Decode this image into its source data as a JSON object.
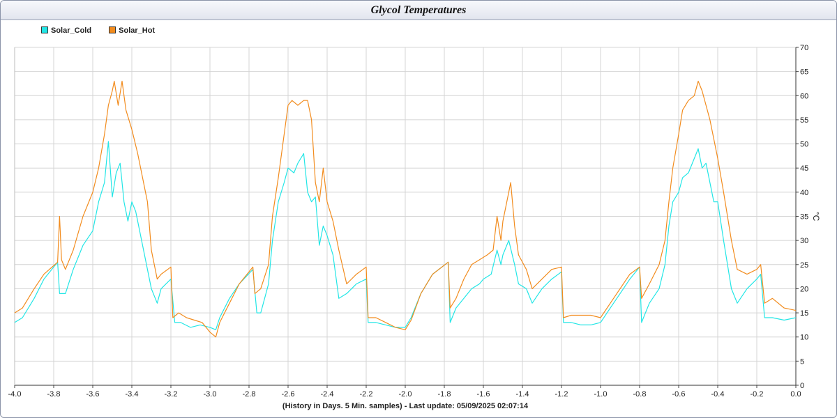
{
  "chart_data": {
    "type": "line",
    "title": "Glycol Temperatures",
    "xlabel": "(History in Days. 5 Min. samples) - Last update: 05/09/2025 02:07:14",
    "ylabel": "°C",
    "xlim": [
      -4.0,
      0.0
    ],
    "ylim": [
      0,
      70
    ],
    "x_ticks": [
      "-4.0",
      "-3.8",
      "-3.6",
      "-3.4",
      "-3.2",
      "-3.0",
      "-2.8",
      "-2.6",
      "-2.4",
      "-2.2",
      "-2.0",
      "-1.8",
      "-1.6",
      "-1.4",
      "-1.2",
      "-1.0",
      "-0.8",
      "-0.6",
      "-0.4",
      "-0.2",
      "0.0"
    ],
    "y_ticks": [
      "0",
      "5",
      "10",
      "15",
      "20",
      "25",
      "30",
      "35",
      "40",
      "45",
      "50",
      "55",
      "60",
      "65",
      "70"
    ],
    "grid": true,
    "legend_position": "top-left",
    "series": [
      {
        "name": "Solar_Cold",
        "color": "#22e6e6",
        "points": [
          [
            -4.0,
            13
          ],
          [
            -3.96,
            14
          ],
          [
            -3.9,
            18
          ],
          [
            -3.85,
            22
          ],
          [
            -3.78,
            25.5
          ],
          [
            -3.77,
            19
          ],
          [
            -3.74,
            19
          ],
          [
            -3.7,
            24
          ],
          [
            -3.65,
            29
          ],
          [
            -3.6,
            32
          ],
          [
            -3.57,
            38
          ],
          [
            -3.54,
            42
          ],
          [
            -3.52,
            50.5
          ],
          [
            -3.5,
            39
          ],
          [
            -3.48,
            44
          ],
          [
            -3.46,
            46
          ],
          [
            -3.44,
            38
          ],
          [
            -3.42,
            34
          ],
          [
            -3.4,
            38
          ],
          [
            -3.38,
            36
          ],
          [
            -3.35,
            30
          ],
          [
            -3.3,
            20
          ],
          [
            -3.27,
            17
          ],
          [
            -3.25,
            20
          ],
          [
            -3.2,
            22
          ],
          [
            -3.18,
            13
          ],
          [
            -3.15,
            13
          ],
          [
            -3.1,
            12
          ],
          [
            -3.05,
            12.5
          ],
          [
            -3.0,
            12
          ],
          [
            -2.97,
            11.5
          ],
          [
            -2.95,
            14
          ],
          [
            -2.9,
            18
          ],
          [
            -2.85,
            21
          ],
          [
            -2.78,
            24
          ],
          [
            -2.76,
            15
          ],
          [
            -2.74,
            15
          ],
          [
            -2.7,
            21
          ],
          [
            -2.68,
            30
          ],
          [
            -2.65,
            38
          ],
          [
            -2.62,
            42
          ],
          [
            -2.6,
            45
          ],
          [
            -2.57,
            44
          ],
          [
            -2.55,
            46
          ],
          [
            -2.52,
            48
          ],
          [
            -2.5,
            40
          ],
          [
            -2.48,
            38
          ],
          [
            -2.46,
            39
          ],
          [
            -2.44,
            29
          ],
          [
            -2.42,
            33
          ],
          [
            -2.4,
            31
          ],
          [
            -2.37,
            27
          ],
          [
            -2.34,
            18
          ],
          [
            -2.3,
            19
          ],
          [
            -2.25,
            21
          ],
          [
            -2.2,
            22
          ],
          [
            -2.19,
            13
          ],
          [
            -2.15,
            13
          ],
          [
            -2.1,
            12.5
          ],
          [
            -2.05,
            12
          ],
          [
            -2.0,
            12
          ],
          [
            -1.97,
            14
          ],
          [
            -1.92,
            19
          ],
          [
            -1.86,
            23
          ],
          [
            -1.78,
            25.5
          ],
          [
            -1.77,
            13
          ],
          [
            -1.74,
            16
          ],
          [
            -1.7,
            18
          ],
          [
            -1.66,
            20
          ],
          [
            -1.62,
            21
          ],
          [
            -1.6,
            22
          ],
          [
            -1.56,
            23
          ],
          [
            -1.53,
            28
          ],
          [
            -1.51,
            25
          ],
          [
            -1.5,
            27
          ],
          [
            -1.47,
            30
          ],
          [
            -1.44,
            25
          ],
          [
            -1.42,
            21
          ],
          [
            -1.38,
            20
          ],
          [
            -1.35,
            17
          ],
          [
            -1.3,
            20
          ],
          [
            -1.25,
            22
          ],
          [
            -1.2,
            23.5
          ],
          [
            -1.19,
            13
          ],
          [
            -1.15,
            13
          ],
          [
            -1.1,
            12.5
          ],
          [
            -1.05,
            12.5
          ],
          [
            -1.0,
            13
          ],
          [
            -0.95,
            16
          ],
          [
            -0.9,
            19
          ],
          [
            -0.85,
            22
          ],
          [
            -0.8,
            24.5
          ],
          [
            -0.79,
            13
          ],
          [
            -0.75,
            17
          ],
          [
            -0.7,
            20
          ],
          [
            -0.67,
            25
          ],
          [
            -0.65,
            33
          ],
          [
            -0.63,
            38
          ],
          [
            -0.6,
            40
          ],
          [
            -0.58,
            43
          ],
          [
            -0.55,
            44
          ],
          [
            -0.52,
            47
          ],
          [
            -0.5,
            49
          ],
          [
            -0.48,
            45
          ],
          [
            -0.46,
            46
          ],
          [
            -0.44,
            42
          ],
          [
            -0.42,
            38
          ],
          [
            -0.4,
            38
          ],
          [
            -0.37,
            30
          ],
          [
            -0.33,
            20
          ],
          [
            -0.3,
            17
          ],
          [
            -0.25,
            20
          ],
          [
            -0.2,
            22
          ],
          [
            -0.18,
            23
          ],
          [
            -0.16,
            14
          ],
          [
            -0.12,
            14
          ],
          [
            -0.06,
            13.5
          ],
          [
            0.0,
            14
          ]
        ]
      },
      {
        "name": "Solar_Hot",
        "color": "#f28c1e",
        "points": [
          [
            -4.0,
            15
          ],
          [
            -3.96,
            16
          ],
          [
            -3.9,
            20
          ],
          [
            -3.85,
            23
          ],
          [
            -3.78,
            25.5
          ],
          [
            -3.77,
            35
          ],
          [
            -3.76,
            26
          ],
          [
            -3.74,
            24
          ],
          [
            -3.7,
            28
          ],
          [
            -3.65,
            35
          ],
          [
            -3.6,
            40
          ],
          [
            -3.57,
            45
          ],
          [
            -3.54,
            52
          ],
          [
            -3.52,
            58
          ],
          [
            -3.5,
            61
          ],
          [
            -3.49,
            63
          ],
          [
            -3.47,
            58
          ],
          [
            -3.45,
            63
          ],
          [
            -3.43,
            57
          ],
          [
            -3.4,
            53
          ],
          [
            -3.37,
            48
          ],
          [
            -3.34,
            42
          ],
          [
            -3.32,
            38
          ],
          [
            -3.3,
            28
          ],
          [
            -3.27,
            22
          ],
          [
            -3.25,
            23
          ],
          [
            -3.2,
            24.5
          ],
          [
            -3.19,
            14
          ],
          [
            -3.16,
            15
          ],
          [
            -3.12,
            14
          ],
          [
            -3.08,
            13.5
          ],
          [
            -3.04,
            13
          ],
          [
            -3.0,
            11
          ],
          [
            -2.97,
            10
          ],
          [
            -2.95,
            13
          ],
          [
            -2.9,
            17
          ],
          [
            -2.85,
            21
          ],
          [
            -2.78,
            24.5
          ],
          [
            -2.77,
            19
          ],
          [
            -2.74,
            20
          ],
          [
            -2.7,
            25
          ],
          [
            -2.68,
            35
          ],
          [
            -2.65,
            43
          ],
          [
            -2.62,
            52
          ],
          [
            -2.6,
            58
          ],
          [
            -2.58,
            59
          ],
          [
            -2.55,
            58
          ],
          [
            -2.52,
            59
          ],
          [
            -2.5,
            59
          ],
          [
            -2.48,
            55
          ],
          [
            -2.46,
            42
          ],
          [
            -2.44,
            38
          ],
          [
            -2.42,
            45
          ],
          [
            -2.4,
            38
          ],
          [
            -2.37,
            34
          ],
          [
            -2.34,
            28
          ],
          [
            -2.3,
            21
          ],
          [
            -2.25,
            23
          ],
          [
            -2.2,
            24.5
          ],
          [
            -2.19,
            14
          ],
          [
            -2.15,
            14
          ],
          [
            -2.1,
            13
          ],
          [
            -2.05,
            12
          ],
          [
            -2.0,
            11.5
          ],
          [
            -1.97,
            13.5
          ],
          [
            -1.92,
            19
          ],
          [
            -1.86,
            23
          ],
          [
            -1.78,
            25.5
          ],
          [
            -1.77,
            16
          ],
          [
            -1.74,
            18
          ],
          [
            -1.7,
            22
          ],
          [
            -1.66,
            25
          ],
          [
            -1.62,
            26
          ],
          [
            -1.58,
            27
          ],
          [
            -1.55,
            28
          ],
          [
            -1.53,
            35
          ],
          [
            -1.51,
            30
          ],
          [
            -1.5,
            34
          ],
          [
            -1.48,
            38
          ],
          [
            -1.46,
            42
          ],
          [
            -1.44,
            33
          ],
          [
            -1.42,
            27
          ],
          [
            -1.38,
            24
          ],
          [
            -1.35,
            20
          ],
          [
            -1.3,
            22
          ],
          [
            -1.25,
            24
          ],
          [
            -1.2,
            24.5
          ],
          [
            -1.19,
            14
          ],
          [
            -1.15,
            14.5
          ],
          [
            -1.1,
            14.5
          ],
          [
            -1.05,
            14.5
          ],
          [
            -1.0,
            14
          ],
          [
            -0.95,
            17
          ],
          [
            -0.9,
            20
          ],
          [
            -0.85,
            23
          ],
          [
            -0.8,
            24.5
          ],
          [
            -0.79,
            18
          ],
          [
            -0.75,
            21
          ],
          [
            -0.7,
            25
          ],
          [
            -0.67,
            30
          ],
          [
            -0.65,
            38
          ],
          [
            -0.63,
            45
          ],
          [
            -0.6,
            52
          ],
          [
            -0.58,
            57
          ],
          [
            -0.55,
            59
          ],
          [
            -0.52,
            60
          ],
          [
            -0.5,
            63
          ],
          [
            -0.48,
            61
          ],
          [
            -0.46,
            58
          ],
          [
            -0.44,
            55
          ],
          [
            -0.42,
            51
          ],
          [
            -0.4,
            47
          ],
          [
            -0.37,
            40
          ],
          [
            -0.33,
            30
          ],
          [
            -0.3,
            24
          ],
          [
            -0.25,
            23
          ],
          [
            -0.2,
            24
          ],
          [
            -0.18,
            25
          ],
          [
            -0.16,
            17
          ],
          [
            -0.12,
            18
          ],
          [
            -0.06,
            16
          ],
          [
            0.0,
            15.5
          ]
        ]
      }
    ]
  }
}
